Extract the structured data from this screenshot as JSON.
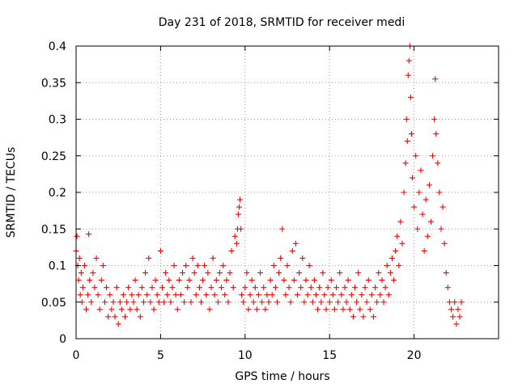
{
  "chart_data": {
    "type": "scatter",
    "title": "Day 231 of 2018, SRMTID for receiver medi",
    "xlabel": "GPS time / hours",
    "ylabel": "SRMTID / TECUs",
    "xlim": [
      0,
      25
    ],
    "ylim": [
      0,
      0.4
    ],
    "x_ticks": [
      0,
      5,
      10,
      15,
      20
    ],
    "x_tick_labels": [
      "0",
      "5",
      "10",
      "15",
      "20"
    ],
    "y_ticks": [
      0,
      0.05,
      0.1,
      0.15,
      0.2,
      0.25,
      0.3,
      0.35,
      0.4
    ],
    "y_tick_labels": [
      "0",
      "0.05",
      "0.1",
      "0.15",
      "0.2",
      "0.25",
      "0.3",
      "0.35",
      "0.4"
    ],
    "grid": true,
    "marker": "plus",
    "color": "#ff0000",
    "series": [
      {
        "name": "medi",
        "points": [
          [
            0.0,
            0.12
          ],
          [
            0.05,
            0.14
          ],
          [
            0.1,
            0.1
          ],
          [
            0.15,
            0.08
          ],
          [
            0.2,
            0.11
          ],
          [
            0.25,
            0.06
          ],
          [
            0.3,
            0.09
          ],
          [
            0.35,
            0.05
          ],
          [
            0.4,
            0.07
          ],
          [
            0.5,
            0.1
          ],
          [
            0.6,
            0.04
          ],
          [
            0.7,
            0.06
          ],
          [
            0.75,
            0.143
          ],
          [
            0.8,
            0.08
          ],
          [
            0.9,
            0.05
          ],
          [
            1.0,
            0.09
          ],
          [
            1.1,
            0.07
          ],
          [
            1.2,
            0.11
          ],
          [
            1.3,
            0.06
          ],
          [
            1.4,
            0.04
          ],
          [
            1.5,
            0.08
          ],
          [
            1.6,
            0.1
          ],
          [
            1.7,
            0.05
          ],
          [
            1.8,
            0.07
          ],
          [
            1.9,
            0.03
          ],
          [
            2.0,
            0.06
          ],
          [
            2.1,
            0.04
          ],
          [
            2.2,
            0.05
          ],
          [
            2.3,
            0.03
          ],
          [
            2.4,
            0.07
          ],
          [
            2.5,
            0.02
          ],
          [
            2.6,
            0.05
          ],
          [
            2.7,
            0.04
          ],
          [
            2.8,
            0.06
          ],
          [
            2.9,
            0.03
          ],
          [
            3.0,
            0.05
          ],
          [
            3.1,
            0.07
          ],
          [
            3.2,
            0.04
          ],
          [
            3.3,
            0.06
          ],
          [
            3.4,
            0.05
          ],
          [
            3.5,
            0.08
          ],
          [
            3.6,
            0.04
          ],
          [
            3.7,
            0.06
          ],
          [
            3.8,
            0.03
          ],
          [
            3.9,
            0.07
          ],
          [
            4.0,
            0.05
          ],
          [
            4.1,
            0.09
          ],
          [
            4.2,
            0.06
          ],
          [
            4.3,
            0.11
          ],
          [
            4.4,
            0.05
          ],
          [
            4.5,
            0.07
          ],
          [
            4.6,
            0.04
          ],
          [
            4.7,
            0.08
          ],
          [
            4.8,
            0.06
          ],
          [
            4.9,
            0.05
          ],
          [
            5.0,
            0.12
          ],
          [
            5.1,
            0.07
          ],
          [
            5.2,
            0.05
          ],
          [
            5.3,
            0.09
          ],
          [
            5.4,
            0.06
          ],
          [
            5.5,
            0.08
          ],
          [
            5.6,
            0.05
          ],
          [
            5.7,
            0.07
          ],
          [
            5.8,
            0.1
          ],
          [
            5.9,
            0.06
          ],
          [
            6.0,
            0.04
          ],
          [
            6.1,
            0.08
          ],
          [
            6.2,
            0.06
          ],
          [
            6.3,
            0.09
          ],
          [
            6.4,
            0.05
          ],
          [
            6.5,
            0.1
          ],
          [
            6.6,
            0.07
          ],
          [
            6.7,
            0.08
          ],
          [
            6.8,
            0.05
          ],
          [
            6.9,
            0.11
          ],
          [
            7.0,
            0.09
          ],
          [
            7.1,
            0.06
          ],
          [
            7.2,
            0.1
          ],
          [
            7.3,
            0.07
          ],
          [
            7.4,
            0.05
          ],
          [
            7.5,
            0.08
          ],
          [
            7.6,
            0.1
          ],
          [
            7.7,
            0.06
          ],
          [
            7.8,
            0.09
          ],
          [
            7.9,
            0.04
          ],
          [
            8.0,
            0.07
          ],
          [
            8.1,
            0.11
          ],
          [
            8.2,
            0.06
          ],
          [
            8.3,
            0.08
          ],
          [
            8.4,
            0.05
          ],
          [
            8.5,
            0.09
          ],
          [
            8.6,
            0.07
          ],
          [
            8.7,
            0.1
          ],
          [
            8.8,
            0.06
          ],
          [
            8.9,
            0.08
          ],
          [
            9.0,
            0.05
          ],
          [
            9.1,
            0.09
          ],
          [
            9.2,
            0.12
          ],
          [
            9.3,
            0.07
          ],
          [
            9.4,
            0.14
          ],
          [
            9.5,
            0.13
          ],
          [
            9.55,
            0.15
          ],
          [
            9.6,
            0.17
          ],
          [
            9.65,
            0.18
          ],
          [
            9.7,
            0.19
          ],
          [
            9.75,
            0.15
          ],
          [
            9.8,
            0.06
          ],
          [
            9.9,
            0.05
          ],
          [
            10.0,
            0.07
          ],
          [
            10.1,
            0.09
          ],
          [
            10.2,
            0.04
          ],
          [
            10.3,
            0.06
          ],
          [
            10.4,
            0.08
          ],
          [
            10.5,
            0.05
          ],
          [
            10.6,
            0.07
          ],
          [
            10.7,
            0.04
          ],
          [
            10.8,
            0.06
          ],
          [
            10.9,
            0.09
          ],
          [
            11.0,
            0.05
          ],
          [
            11.1,
            0.07
          ],
          [
            11.2,
            0.04
          ],
          [
            11.3,
            0.06
          ],
          [
            11.4,
            0.05
          ],
          [
            11.5,
            0.08
          ],
          [
            11.6,
            0.06
          ],
          [
            11.7,
            0.1
          ],
          [
            11.8,
            0.07
          ],
          [
            11.9,
            0.05
          ],
          [
            12.0,
            0.09
          ],
          [
            12.1,
            0.11
          ],
          [
            12.2,
            0.15
          ],
          [
            12.3,
            0.08
          ],
          [
            12.4,
            0.06
          ],
          [
            12.5,
            0.1
          ],
          [
            12.6,
            0.07
          ],
          [
            12.7,
            0.05
          ],
          [
            12.8,
            0.12
          ],
          [
            12.9,
            0.08
          ],
          [
            13.0,
            0.13
          ],
          [
            13.1,
            0.06
          ],
          [
            13.2,
            0.09
          ],
          [
            13.3,
            0.07
          ],
          [
            13.4,
            0.11
          ],
          [
            13.5,
            0.05
          ],
          [
            13.6,
            0.08
          ],
          [
            13.7,
            0.06
          ],
          [
            13.8,
            0.1
          ],
          [
            13.9,
            0.07
          ],
          [
            14.0,
            0.05
          ],
          [
            14.1,
            0.08
          ],
          [
            14.2,
            0.06
          ],
          [
            14.3,
            0.04
          ],
          [
            14.4,
            0.07
          ],
          [
            14.5,
            0.05
          ],
          [
            14.6,
            0.09
          ],
          [
            14.7,
            0.06
          ],
          [
            14.8,
            0.04
          ],
          [
            14.9,
            0.07
          ],
          [
            15.0,
            0.05
          ],
          [
            15.1,
            0.08
          ],
          [
            15.2,
            0.06
          ],
          [
            15.3,
            0.04
          ],
          [
            15.4,
            0.07
          ],
          [
            15.5,
            0.05
          ],
          [
            15.6,
            0.09
          ],
          [
            15.7,
            0.06
          ],
          [
            15.8,
            0.04
          ],
          [
            15.9,
            0.07
          ],
          [
            16.0,
            0.05
          ],
          [
            16.1,
            0.08
          ],
          [
            16.2,
            0.04
          ],
          [
            16.3,
            0.06
          ],
          [
            16.4,
            0.03
          ],
          [
            16.5,
            0.07
          ],
          [
            16.6,
            0.05
          ],
          [
            16.7,
            0.09
          ],
          [
            16.8,
            0.04
          ],
          [
            16.9,
            0.06
          ],
          [
            17.0,
            0.03
          ],
          [
            17.1,
            0.07
          ],
          [
            17.2,
            0.05
          ],
          [
            17.3,
            0.08
          ],
          [
            17.4,
            0.04
          ],
          [
            17.5,
            0.06
          ],
          [
            17.6,
            0.03
          ],
          [
            17.7,
            0.07
          ],
          [
            17.8,
            0.05
          ],
          [
            17.9,
            0.09
          ],
          [
            18.0,
            0.06
          ],
          [
            18.1,
            0.08
          ],
          [
            18.2,
            0.05
          ],
          [
            18.3,
            0.07
          ],
          [
            18.4,
            0.1
          ],
          [
            18.5,
            0.06
          ],
          [
            18.6,
            0.09
          ],
          [
            18.7,
            0.11
          ],
          [
            18.8,
            0.08
          ],
          [
            18.9,
            0.12
          ],
          [
            19.0,
            0.14
          ],
          [
            19.1,
            0.1
          ],
          [
            19.2,
            0.16
          ],
          [
            19.3,
            0.13
          ],
          [
            19.4,
            0.2
          ],
          [
            19.5,
            0.24
          ],
          [
            19.55,
            0.3
          ],
          [
            19.6,
            0.27
          ],
          [
            19.65,
            0.36
          ],
          [
            19.7,
            0.38
          ],
          [
            19.75,
            0.4
          ],
          [
            19.8,
            0.33
          ],
          [
            19.85,
            0.28
          ],
          [
            19.9,
            0.22
          ],
          [
            20.0,
            0.18
          ],
          [
            20.1,
            0.25
          ],
          [
            20.2,
            0.15
          ],
          [
            20.3,
            0.2
          ],
          [
            20.4,
            0.23
          ],
          [
            20.5,
            0.17
          ],
          [
            20.6,
            0.12
          ],
          [
            20.7,
            0.19
          ],
          [
            20.8,
            0.14
          ],
          [
            20.9,
            0.21
          ],
          [
            21.0,
            0.16
          ],
          [
            21.1,
            0.25
          ],
          [
            21.2,
            0.3
          ],
          [
            21.25,
            0.355
          ],
          [
            21.3,
            0.28
          ],
          [
            21.4,
            0.24
          ],
          [
            21.5,
            0.2
          ],
          [
            21.6,
            0.15
          ],
          [
            21.7,
            0.18
          ],
          [
            21.8,
            0.13
          ],
          [
            21.9,
            0.09
          ],
          [
            22.0,
            0.07
          ],
          [
            22.1,
            0.05
          ],
          [
            22.2,
            0.04
          ],
          [
            22.3,
            0.03
          ],
          [
            22.4,
            0.05
          ],
          [
            22.5,
            0.02
          ],
          [
            22.6,
            0.04
          ],
          [
            22.7,
            0.03
          ],
          [
            22.8,
            0.05
          ]
        ]
      }
    ]
  }
}
